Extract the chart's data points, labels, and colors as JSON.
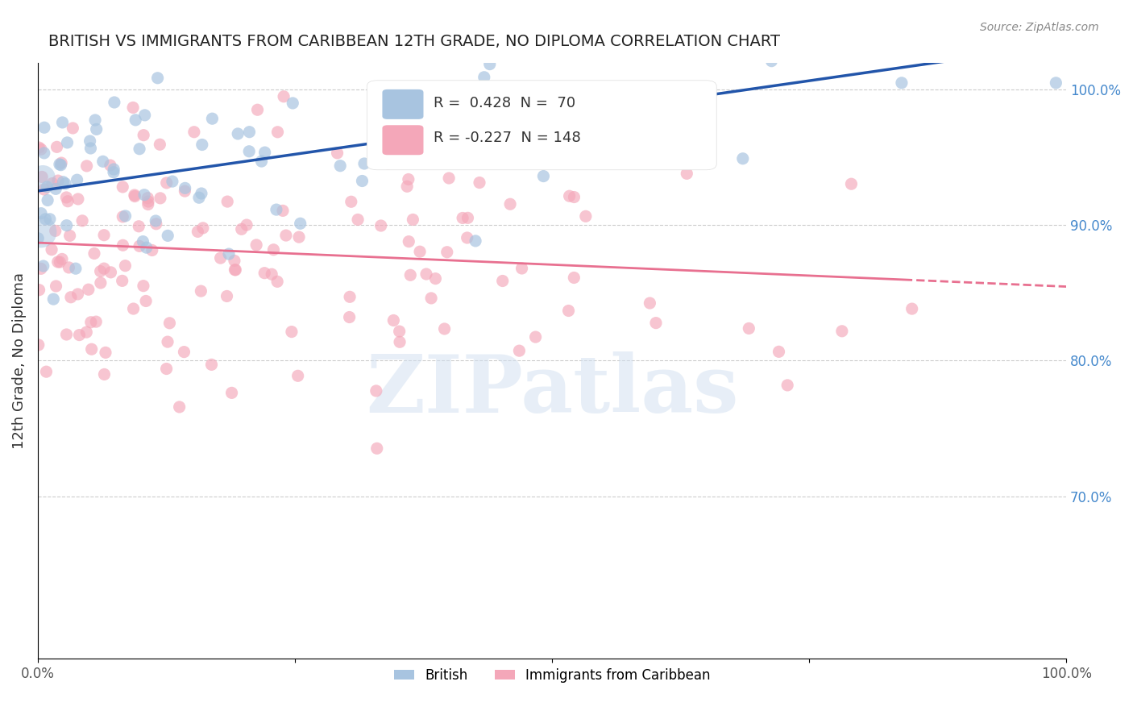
{
  "title": "BRITISH VS IMMIGRANTS FROM CARIBBEAN 12TH GRADE, NO DIPLOMA CORRELATION CHART",
  "source": "Source: ZipAtlas.com",
  "xlabel": "",
  "ylabel": "12th Grade, No Diploma",
  "xlim": [
    0.0,
    1.0
  ],
  "ylim": [
    0.58,
    1.02
  ],
  "blue_R": 0.428,
  "blue_N": 70,
  "pink_R": -0.227,
  "pink_N": 148,
  "blue_color": "#a8c4e0",
  "pink_color": "#f4a7b9",
  "blue_line_color": "#2255aa",
  "pink_line_color": "#e87090",
  "watermark": "ZIPatlas",
  "right_yticks": [
    0.7,
    0.8,
    0.9,
    1.0
  ],
  "right_ytick_labels": [
    "70.0%",
    "80.0%",
    "90.0%",
    "100.0%"
  ],
  "xtick_labels": [
    "0.0%",
    "100.0%"
  ],
  "xtick_positions": [
    0.0,
    1.0
  ],
  "blue_legend_label": "British",
  "pink_legend_label": "Immigrants from Caribbean",
  "legend_R_blue": "R =  0.428  N =  70",
  "legend_R_pink": "R = -0.227  N = 148"
}
